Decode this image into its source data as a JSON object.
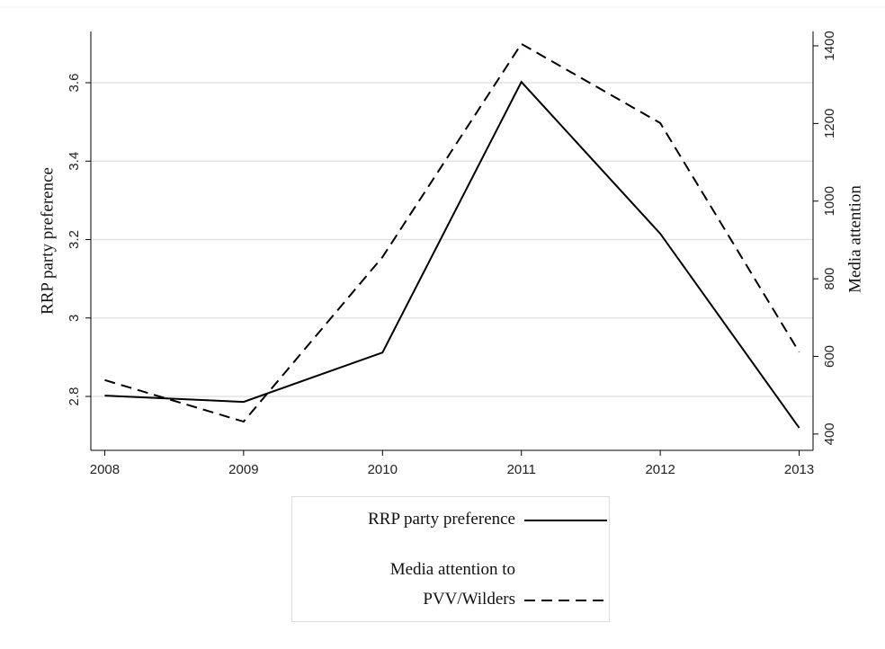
{
  "chart_data": {
    "type": "line",
    "x": [
      2008,
      2009,
      2010,
      2011,
      2012,
      2013
    ],
    "xlim": [
      2007.9,
      2013.1
    ],
    "xticks": [
      2008,
      2009,
      2010,
      2011,
      2012,
      2013
    ],
    "ylabel": "RRP party preference",
    "y2label": "Media attention",
    "ylim": [
      2.6625,
      3.7307
    ],
    "yticks": [
      2.8,
      3,
      3.2,
      3.4,
      3.6
    ],
    "y2lim": [
      358,
      1437
    ],
    "y2ticks": [
      400,
      600,
      800,
      1000,
      1200,
      1400
    ],
    "grid": true,
    "series": [
      {
        "name": "RRP party preference",
        "color": "#000000",
        "linestyle": "solid",
        "values": [
          2.802,
          2.786,
          2.912,
          3.602,
          3.215,
          2.72
        ]
      },
      {
        "name": "Media attention to PVV/Wilders",
        "color": "#000000",
        "linestyle": "dashed",
        "axis": "y2",
        "values": [
          539,
          432,
          856,
          1405,
          1201,
          611
        ]
      }
    ]
  }
}
